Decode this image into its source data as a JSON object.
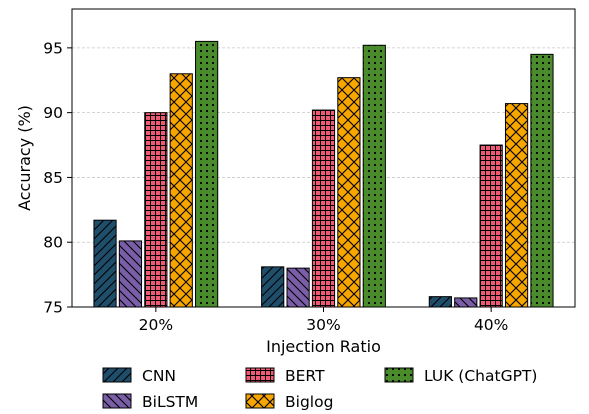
{
  "chart_data": {
    "type": "bar",
    "xlabel": "Injection Ratio",
    "ylabel": "Accuracy (%)",
    "categories": [
      "20%",
      "30%",
      "40%"
    ],
    "ylim": [
      75,
      98
    ],
    "yticks": [
      75,
      80,
      85,
      90,
      95
    ],
    "grid": "horizontal dashed",
    "legend_position": "bottom",
    "series": [
      {
        "name": "CNN",
        "values": [
          81.7,
          78.1,
          75.8
        ],
        "color": "#1f4e6b",
        "hatch": "diagonal"
      },
      {
        "name": "BiLSTM",
        "values": [
          80.1,
          78.0,
          75.7
        ],
        "color": "#7a5ea8",
        "hatch": "backdiagonal"
      },
      {
        "name": "BERT",
        "values": [
          90.0,
          90.2,
          87.5
        ],
        "color": "#ee5a74",
        "hatch": "grid"
      },
      {
        "name": "Biglog",
        "values": [
          93.0,
          92.7,
          90.7
        ],
        "color": "#f7a600",
        "hatch": "crosshatch"
      },
      {
        "name": "LUK (ChatGPT)",
        "values": [
          95.5,
          95.2,
          94.5
        ],
        "color": "#4a8b2c",
        "hatch": "dots"
      }
    ]
  }
}
